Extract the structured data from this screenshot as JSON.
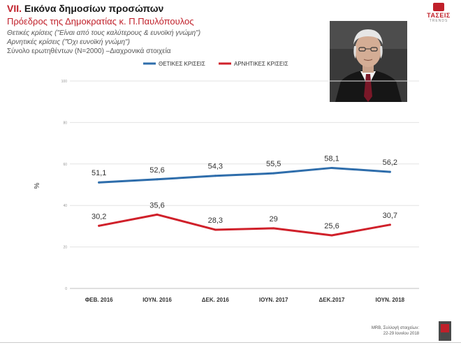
{
  "header": {
    "section_num": "VII.",
    "section_title": "Εικόνα δημοσίων προσώπων",
    "subtitle": "Πρόεδρος της Δημοκρατίας κ. Π.Παυλόπουλος",
    "desc1": "Θετικές κρίσεις (\"Είναι από τους καλύτερους & ευνοϊκή γνώμη\")",
    "desc2": "Αρνητικές κρίσεις (\"Όχι ευνοϊκή γνώμη\")",
    "desc3": "Σύνολο ερωτηθέντων (N=2000) –Διαχρονικά στοιχεία"
  },
  "logo": {
    "brand": "ΤΑΣΕΙΣ",
    "tag": "TRENDS"
  },
  "footer": {
    "line1": "MRB, Συλλογή στοιχείων:",
    "line2": "22-29 Ιουνίου 2018"
  },
  "colors": {
    "positive": "#2e6dab",
    "negative": "#d0202a",
    "accent": "#c0202a"
  },
  "chart_data": {
    "type": "line",
    "categories": [
      "ΦΕΒ. 2016",
      "ΙΟΥΝ. 2016",
      "ΔΕΚ. 2016",
      "ΙΟΥΝ. 2017",
      "ΔΕΚ.2017",
      "ΙΟΥΝ. 2018"
    ],
    "series": [
      {
        "name": "ΘΕΤΙΚΕΣ ΚΡΙΣΕΙΣ",
        "values": [
          51.1,
          52.6,
          54.3,
          55.5,
          58.1,
          56.2
        ],
        "labels": [
          "51,1",
          "52,6",
          "54,3",
          "55,5",
          "58,1",
          "56,2"
        ]
      },
      {
        "name": "ΑΡΝΗΤΙΚΕΣ ΚΡΙΣΕΙΣ",
        "values": [
          30.2,
          35.6,
          28.3,
          29,
          25.6,
          30.7
        ],
        "labels": [
          "30,2",
          "35,6",
          "28,3",
          "29",
          "25,6",
          "30,7"
        ]
      }
    ],
    "ylabel": "%",
    "ylim": [
      0,
      100
    ],
    "yticks": [
      0,
      20,
      40,
      60,
      80,
      100
    ],
    "legend": "top",
    "grid": true
  }
}
